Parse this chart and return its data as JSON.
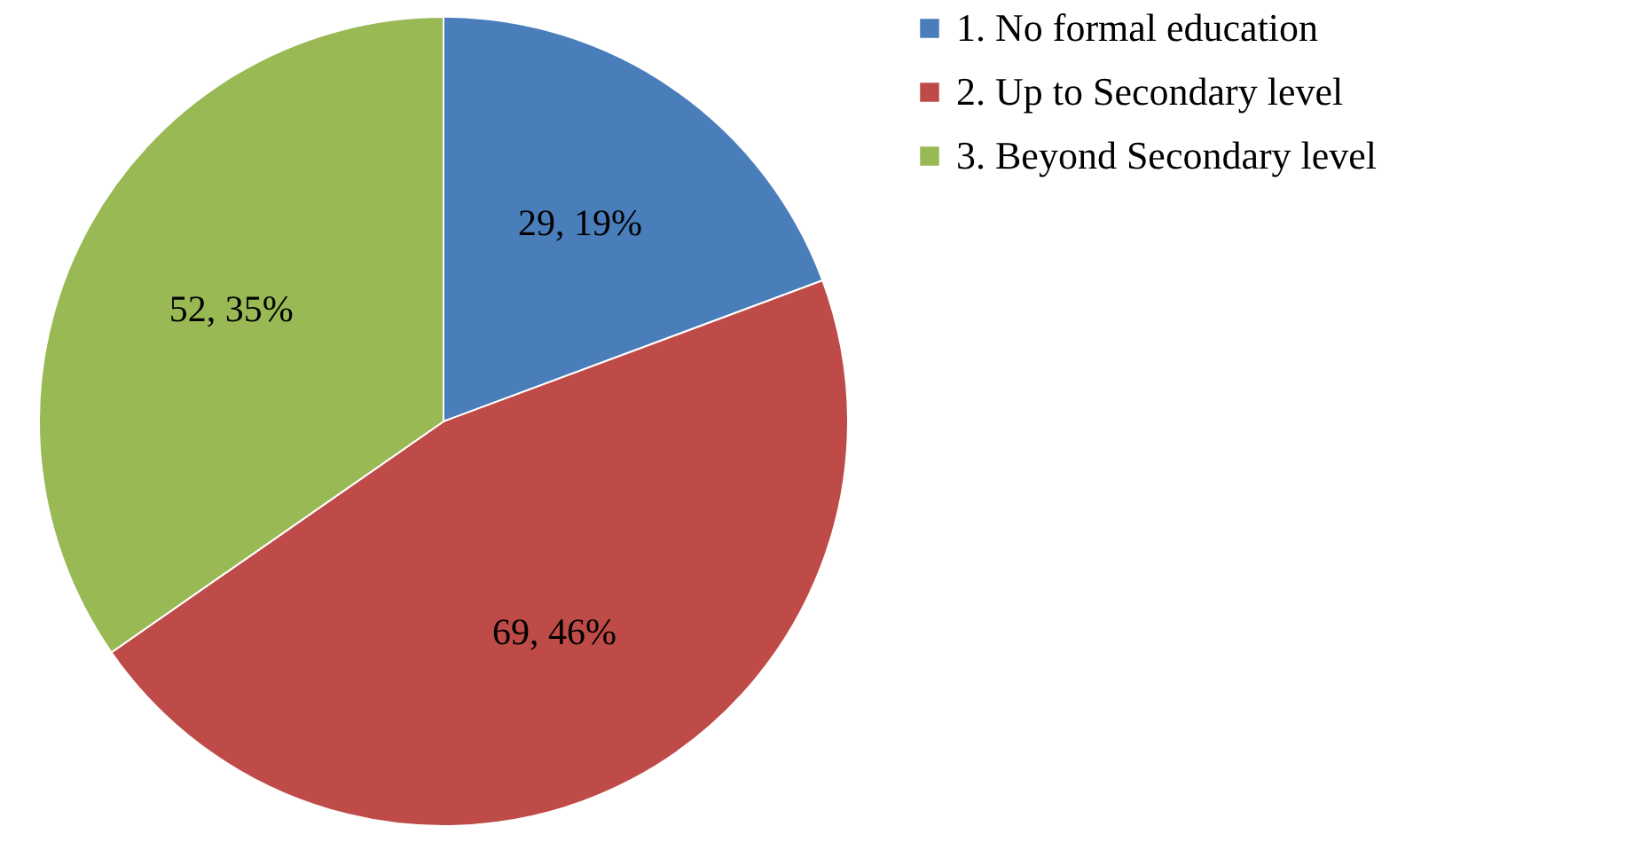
{
  "chart_data": {
    "type": "pie",
    "categories": [
      "1. No formal education",
      "2. Up to Secondary level",
      "3. Beyond Secondary level"
    ],
    "values": [
      29,
      69,
      52
    ],
    "colors": [
      "#4a7ebb",
      "#be4b48",
      "#98b954"
    ],
    "value_labels": [
      "29, 19%",
      "69, 46%",
      "52, 35%"
    ],
    "legend": "right"
  }
}
